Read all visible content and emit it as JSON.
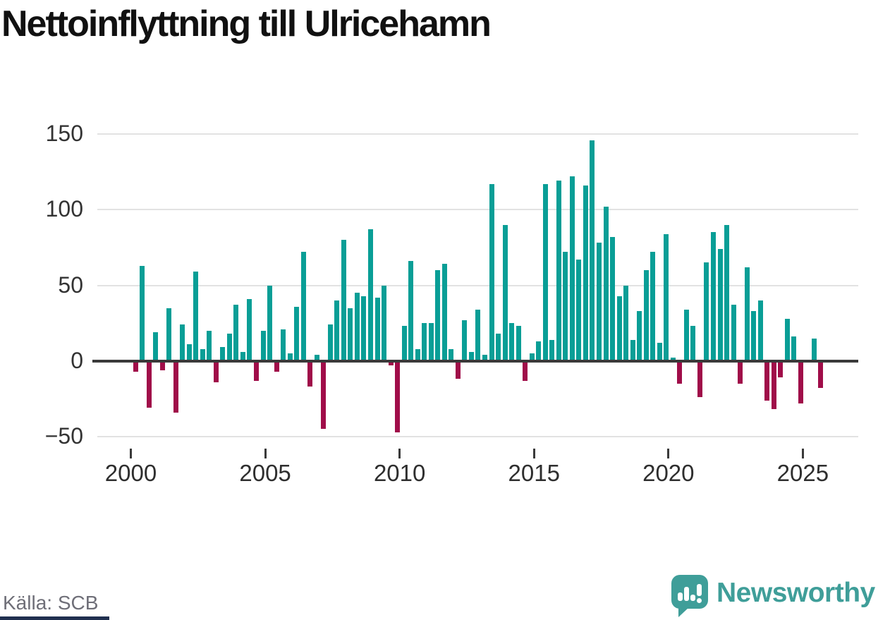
{
  "title": "Nettoinflyttning till Ulricehamn",
  "source": "Källa: SCB",
  "branding": {
    "name": "Newsworthy"
  },
  "colors": {
    "positive_bar": "#099e96",
    "negative_bar": "#a00d49",
    "gridline": "#e2e2e2",
    "zero_axis": "#3a3a3a",
    "axis_text": "#333333",
    "title_text": "#111111",
    "source_text": "#6f6f78",
    "brand_teal": "#3f9e99",
    "footer_strip": "#20304f"
  },
  "chart_data": {
    "type": "bar",
    "title": "Nettoinflyttning till Ulricehamn",
    "xlabel": "",
    "ylabel": "",
    "frequency": "quarterly",
    "ylim": [
      -50,
      150
    ],
    "grid": true,
    "legend": false,
    "y_ticks": [
      150,
      100,
      50,
      0,
      -50
    ],
    "y_tick_labels": [
      "150",
      "100",
      "50",
      "0",
      "−50"
    ],
    "x_tick_years": [
      2000,
      2005,
      2010,
      2015,
      2020,
      2025
    ],
    "x_tick_labels": [
      "2000",
      "2005",
      "2010",
      "2015",
      "2020",
      "2025"
    ],
    "x": [
      "2000 Q1",
      "2000 Q2",
      "2000 Q3",
      "2000 Q4",
      "2001 Q1",
      "2001 Q2",
      "2001 Q3",
      "2001 Q4",
      "2002 Q1",
      "2002 Q2",
      "2002 Q3",
      "2002 Q4",
      "2003 Q1",
      "2003 Q2",
      "2003 Q3",
      "2003 Q4",
      "2004 Q1",
      "2004 Q2",
      "2004 Q3",
      "2004 Q4",
      "2005 Q1",
      "2005 Q2",
      "2005 Q3",
      "2005 Q4",
      "2006 Q1",
      "2006 Q2",
      "2006 Q3",
      "2006 Q4",
      "2007 Q1",
      "2007 Q2",
      "2007 Q3",
      "2007 Q4",
      "2008 Q1",
      "2008 Q2",
      "2008 Q3",
      "2008 Q4",
      "2009 Q1",
      "2009 Q2",
      "2009 Q3",
      "2009 Q4",
      "2010 Q1",
      "2010 Q2",
      "2010 Q3",
      "2010 Q4",
      "2011 Q1",
      "2011 Q2",
      "2011 Q3",
      "2011 Q4",
      "2012 Q1",
      "2012 Q2",
      "2012 Q3",
      "2012 Q4",
      "2013 Q1",
      "2013 Q2",
      "2013 Q3",
      "2013 Q4",
      "2014 Q1",
      "2014 Q2",
      "2014 Q3",
      "2014 Q4",
      "2015 Q1",
      "2015 Q2",
      "2015 Q3",
      "2015 Q4",
      "2016 Q1",
      "2016 Q2",
      "2016 Q3",
      "2016 Q4",
      "2017 Q1",
      "2017 Q2",
      "2017 Q3",
      "2017 Q4",
      "2018 Q1",
      "2018 Q2",
      "2018 Q3",
      "2018 Q4",
      "2019 Q1",
      "2019 Q2",
      "2019 Q3",
      "2019 Q4",
      "2020 Q1",
      "2020 Q2",
      "2020 Q3",
      "2020 Q4",
      "2021 Q1",
      "2021 Q2",
      "2021 Q3",
      "2021 Q4",
      "2022 Q1",
      "2022 Q2",
      "2022 Q3",
      "2022 Q4",
      "2023 Q1",
      "2023 Q2",
      "2023 Q3",
      "2023 Q4",
      "2024 Q1",
      "2024 Q2",
      "2024 Q3",
      "2024 Q4",
      "2025 Q1",
      "2025 Q2",
      "2025 Q3"
    ],
    "values": [
      -7,
      63,
      -31,
      19,
      -6,
      35,
      -34,
      24,
      11,
      59,
      8,
      20,
      -14,
      9,
      18,
      37,
      6,
      41,
      -13,
      20,
      50,
      -7,
      21,
      5,
      36,
      72,
      -17,
      4,
      -45,
      24,
      40,
      80,
      35,
      45,
      43,
      87,
      42,
      50,
      -3,
      -47,
      23,
      66,
      8,
      25,
      25,
      60,
      64,
      8,
      -12,
      27,
      6,
      34,
      4,
      117,
      18,
      90,
      25,
      23,
      -13,
      5,
      13,
      117,
      14,
      119,
      72,
      122,
      67,
      116,
      146,
      78,
      102,
      82,
      43,
      50,
      14,
      33,
      60,
      72,
      12,
      84,
      2,
      -15,
      34,
      23,
      -24,
      65,
      85,
      74,
      90,
      37,
      -15,
      62,
      33,
      40,
      -26,
      -32,
      -11,
      28,
      16,
      -28,
      0,
      15,
      -18
    ]
  }
}
